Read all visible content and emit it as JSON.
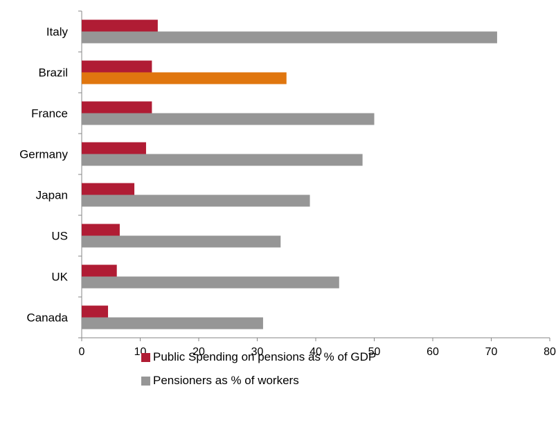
{
  "chart_data": {
    "type": "bar",
    "orientation": "horizontal",
    "categories": [
      "Italy",
      "Brazil",
      "France",
      "Germany",
      "Japan",
      "US",
      "UK",
      "Canada"
    ],
    "series": [
      {
        "name": "Public Spending on pensions as % of GDP",
        "color": "#b01c34",
        "values": [
          13,
          12,
          12,
          11,
          9,
          6.5,
          6,
          4.5
        ]
      },
      {
        "name": "Pensioners as % of workers",
        "color": "#969696",
        "values": [
          71,
          35,
          50,
          48,
          39,
          34,
          44,
          31
        ],
        "highlight": {
          "category": "Brazil",
          "color": "#e0760f"
        }
      }
    ],
    "xlim": [
      0,
      80
    ],
    "xticks": [
      0,
      10,
      20,
      30,
      40,
      50,
      60,
      70,
      80
    ],
    "grid": false,
    "legend_position": "bottom"
  },
  "legend": {
    "items": [
      {
        "label": "Public Spending on pensions as % of GDP",
        "color": "#b01c34"
      },
      {
        "label": "Pensioners as % of workers",
        "color": "#969696"
      }
    ]
  }
}
